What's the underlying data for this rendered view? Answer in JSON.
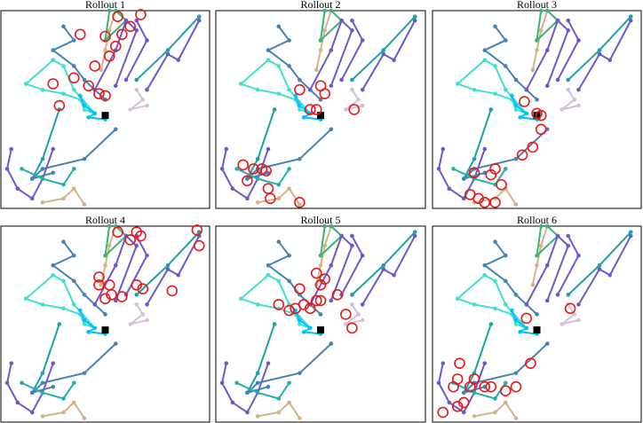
{
  "trajectories": [
    {
      "color": "#40e0d0",
      "x": [
        25,
        12,
        20,
        30,
        38,
        40,
        45,
        35,
        30,
        25
      ],
      "y": [
        75,
        63,
        60,
        58,
        55,
        50,
        48,
        60,
        72,
        75
      ]
    },
    {
      "color": "#4682b4",
      "x": [
        30,
        35,
        25,
        35,
        40,
        45,
        50
      ],
      "y": [
        92,
        85,
        80,
        72,
        65,
        60,
        55
      ]
    },
    {
      "color": "#d2b48c",
      "x": [
        55,
        52,
        50,
        48
      ],
      "y": [
        100,
        90,
        80,
        70
      ]
    },
    {
      "color": "#3cb371",
      "x": [
        52,
        50,
        60,
        55
      ],
      "y": [
        100,
        85,
        95,
        100
      ]
    },
    {
      "color": "#6a5acd",
      "x": [
        45,
        55,
        60,
        65,
        55
      ],
      "y": [
        60,
        80,
        95,
        90,
        62
      ]
    },
    {
      "color": "#6a5acd",
      "x": [
        60,
        70,
        65
      ],
      "y": [
        65,
        85,
        95
      ]
    },
    {
      "color": "#6a5acd",
      "x": [
        70,
        80,
        85,
        95
      ],
      "y": [
        60,
        78,
        75,
        95
      ]
    },
    {
      "color": "#20a0a0",
      "x": [
        28,
        20,
        15
      ],
      "y": [
        50,
        25,
        15
      ]
    },
    {
      "color": "#20a0a0",
      "x": [
        65,
        80,
        95
      ],
      "y": [
        65,
        80,
        97
      ]
    },
    {
      "color": "#00bfff",
      "x": [
        38,
        40,
        45,
        42,
        50
      ],
      "y": [
        57,
        52,
        48,
        46,
        45
      ]
    },
    {
      "color": "#d8bfd8",
      "x": [
        65,
        68,
        62,
        70
      ],
      "y": [
        60,
        55,
        50,
        52
      ]
    },
    {
      "color": "#6a5acd",
      "x": [
        5,
        3,
        8,
        15,
        20,
        25
      ],
      "y": [
        30,
        20,
        10,
        5,
        15,
        30
      ]
    },
    {
      "color": "#4682b4",
      "x": [
        55,
        40,
        20,
        15,
        25
      ],
      "y": [
        40,
        25,
        20,
        15,
        18
      ]
    },
    {
      "color": "#20b2aa",
      "x": [
        10,
        20,
        30,
        35
      ],
      "y": [
        20,
        15,
        12,
        20
      ]
    },
    {
      "color": "#d2b48c",
      "x": [
        20,
        30,
        35,
        40
      ],
      "y": [
        3,
        5,
        10,
        2
      ]
    }
  ],
  "goal": {
    "x": 50,
    "y": 47,
    "color": "#000000"
  },
  "chart_data": [
    {
      "type": "line",
      "title": "Rollout 1",
      "xlim": [
        0,
        100
      ],
      "ylim": [
        0,
        100
      ],
      "series": [
        {
          "color": "#e41a1c",
          "x": [
            56,
            67,
            62,
            58,
            50,
            45,
            38,
            55,
            52,
            35,
            25,
            42,
            47,
            50,
            28
          ],
          "y": [
            97,
            98,
            92,
            88,
            87,
            72,
            88,
            82,
            77,
            66,
            63,
            62,
            58,
            57,
            52
          ]
        }
      ]
    },
    {
      "type": "line",
      "title": "Rollout 2",
      "xlim": [
        0,
        100
      ],
      "ylim": [
        0,
        100
      ],
      "series": [
        {
          "color": "#e41a1c",
          "x": [
            40,
            50,
            52,
            66,
            48,
            45,
            13,
            18,
            22,
            24,
            15,
            25,
            26,
            40
          ],
          "y": [
            60,
            62,
            58,
            50,
            50,
            50,
            22,
            20,
            20,
            19,
            14,
            10,
            5,
            3
          ]
        }
      ]
    },
    {
      "type": "line",
      "title": "Rollout 3",
      "xlim": [
        0,
        100
      ],
      "ylim": [
        0,
        100
      ],
      "series": [
        {
          "color": "#e41a1c",
          "x": [
            44,
            50,
            52,
            52,
            48,
            43,
            30,
            28,
            20,
            18,
            25,
            30,
            33,
            22
          ],
          "y": [
            54,
            48,
            47,
            40,
            31,
            27,
            20,
            17,
            18,
            7,
            3,
            3,
            12,
            5
          ]
        }
      ]
    },
    {
      "type": "line",
      "title": "Rollout 4",
      "xlim": [
        0,
        100
      ],
      "ylim": [
        0,
        100
      ],
      "series": [
        {
          "color": "#e41a1c",
          "x": [
            56,
            65,
            62,
            67,
            94,
            95,
            47,
            47,
            52,
            50,
            53,
            58,
            65,
            68,
            82
          ],
          "y": [
            97,
            97,
            93,
            95,
            98,
            90,
            74,
            70,
            70,
            63,
            65,
            64,
            70,
            68,
            67
          ]
        }
      ]
    },
    {
      "type": "line",
      "title": "Rollout 5",
      "xlim": [
        0,
        100
      ],
      "ylim": [
        0,
        100
      ],
      "series": [
        {
          "color": "#e41a1c",
          "x": [
            48,
            52,
            50,
            40,
            48,
            50,
            42,
            38,
            45,
            35,
            30,
            58,
            62,
            65
          ],
          "y": [
            76,
            73,
            70,
            68,
            62,
            62,
            60,
            58,
            58,
            57,
            60,
            65,
            55,
            48
          ]
        }
      ]
    },
    {
      "type": "line",
      "title": "Rollout 6",
      "xlim": [
        0,
        100
      ],
      "ylim": [
        0,
        100
      ],
      "series": [
        {
          "color": "#e41a1c",
          "x": [
            45,
            66,
            47,
            13,
            12,
            10,
            18,
            20,
            25,
            28,
            35,
            40,
            15,
            12,
            5
          ],
          "y": [
            53,
            58,
            30,
            30,
            22,
            18,
            18,
            22,
            18,
            18,
            16,
            18,
            10,
            8,
            5
          ]
        }
      ]
    }
  ]
}
